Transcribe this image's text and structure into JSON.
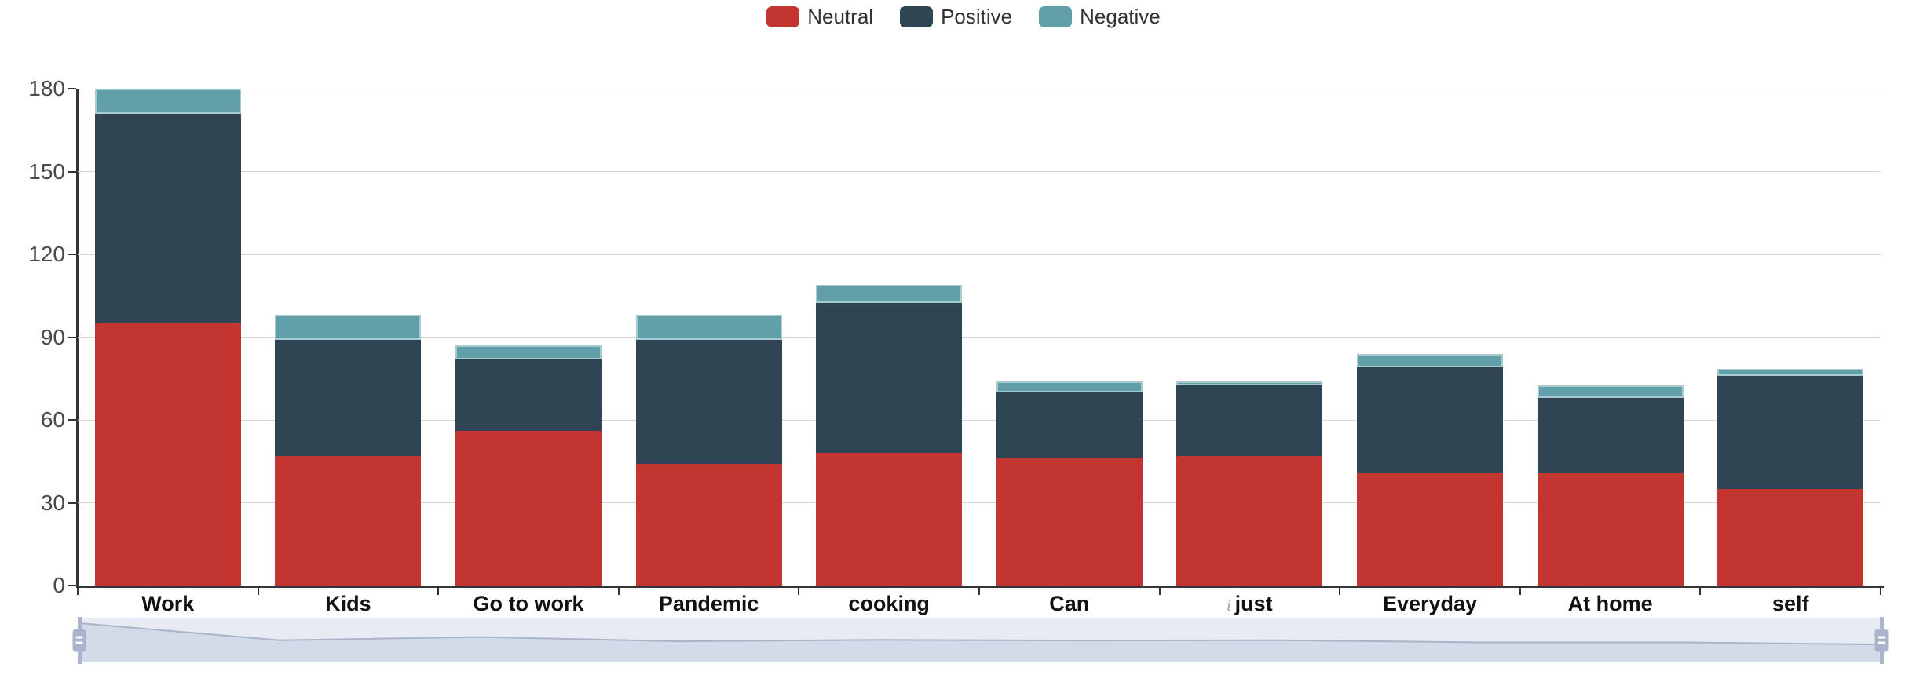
{
  "chart_data": {
    "type": "bar",
    "stacked": true,
    "title": "",
    "xlabel": "",
    "ylabel": "",
    "categories": [
      "Work",
      "Kids",
      "Go to work",
      "Pandemic",
      "cooking",
      "Can",
      "just",
      "Everyday",
      "At home",
      "self"
    ],
    "category_prefixes": [
      "",
      "",
      "",
      "",
      "",
      "",
      "ί",
      "",
      "",
      ""
    ],
    "series": [
      {
        "name": "Neutral",
        "color": "#c23531",
        "values": [
          95,
          47,
          56,
          44,
          48,
          46,
          47,
          41,
          41,
          35
        ]
      },
      {
        "name": "Positive",
        "color": "#2f4554",
        "values": [
          76,
          42,
          26,
          45,
          54.5,
          24,
          25.5,
          38,
          27,
          41
        ]
      },
      {
        "name": "Negative",
        "color": "#61a0a8",
        "values": [
          9,
          9,
          5,
          9,
          6.5,
          4,
          1.5,
          5,
          4.5,
          2.5
        ]
      }
    ],
    "stack_totals": [
      180,
      98,
      87,
      98,
      109,
      74,
      74,
      84,
      72.5,
      78.5
    ],
    "y_axis": {
      "min": 0,
      "max": 180,
      "interval": 30,
      "tick_labels": [
        "0",
        "30",
        "60",
        "90",
        "120",
        "150",
        "180"
      ]
    },
    "ylim": [
      0,
      180
    ],
    "grid": true,
    "legend": {
      "position": "top",
      "items": [
        "Neutral",
        "Positive",
        "Negative"
      ]
    },
    "datazoom": {
      "shadow_series": "Neutral",
      "left_handle": true,
      "right_handle": true
    }
  },
  "colors": {
    "neutral": "#c23531",
    "positive": "#2f4554",
    "negative": "#61a0a8",
    "axis": "#333333",
    "gridline": "#d6d6d6",
    "tick_label": "#4a4a4a",
    "category_label": "#111111",
    "dz_background": "#e7ebf3",
    "dz_line": "#a9b4c9",
    "dz_area": "#d3dae8",
    "dz_handle": "#a9b5cc"
  }
}
